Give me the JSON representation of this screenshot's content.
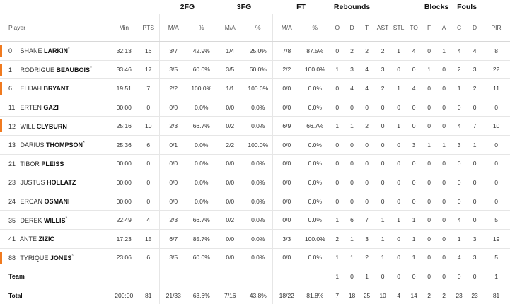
{
  "groups": {
    "fg2": "2FG",
    "fg3": "3FG",
    "ft": "FT",
    "rebounds": "Rebounds",
    "blocks": "Blocks",
    "fouls": "Fouls"
  },
  "columns": [
    "Player",
    "Min",
    "PTS",
    "M/A",
    "%",
    "M/A",
    "%",
    "M/A",
    "%",
    "O",
    "D",
    "T",
    "AST",
    "STL",
    "TO",
    "F",
    "A",
    "C",
    "D",
    "PIR"
  ],
  "players": [
    {
      "num": "0",
      "first": "SHANE",
      "last": "LARKIN",
      "star": "*",
      "starter": true,
      "stats": [
        "32:13",
        "16",
        "3/7",
        "42.9%",
        "1/4",
        "25.0%",
        "7/8",
        "87.5%",
        "0",
        "2",
        "2",
        "2",
        "1",
        "4",
        "0",
        "1",
        "4",
        "4",
        "8"
      ]
    },
    {
      "num": "1",
      "first": "RODRIGUE",
      "last": "BEAUBOIS",
      "star": "*",
      "starter": true,
      "stats": [
        "33:46",
        "17",
        "3/5",
        "60.0%",
        "3/5",
        "60.0%",
        "2/2",
        "100.0%",
        "1",
        "3",
        "4",
        "3",
        "0",
        "0",
        "1",
        "0",
        "2",
        "3",
        "22"
      ]
    },
    {
      "num": "6",
      "first": "ELIJAH",
      "last": "BRYANT",
      "star": "",
      "starter": true,
      "stats": [
        "19:51",
        "7",
        "2/2",
        "100.0%",
        "1/1",
        "100.0%",
        "0/0",
        "0.0%",
        "0",
        "4",
        "4",
        "2",
        "1",
        "4",
        "0",
        "0",
        "1",
        "2",
        "11"
      ]
    },
    {
      "num": "11",
      "first": "ERTEN",
      "last": "GAZI",
      "star": "",
      "starter": false,
      "stats": [
        "00:00",
        "0",
        "0/0",
        "0.0%",
        "0/0",
        "0.0%",
        "0/0",
        "0.0%",
        "0",
        "0",
        "0",
        "0",
        "0",
        "0",
        "0",
        "0",
        "0",
        "0",
        "0"
      ]
    },
    {
      "num": "12",
      "first": "WILL",
      "last": "CLYBURN",
      "star": "",
      "starter": true,
      "stats": [
        "25:16",
        "10",
        "2/3",
        "66.7%",
        "0/2",
        "0.0%",
        "6/9",
        "66.7%",
        "1",
        "1",
        "2",
        "0",
        "1",
        "0",
        "0",
        "0",
        "4",
        "7",
        "10"
      ]
    },
    {
      "num": "13",
      "first": "DARIUS",
      "last": "THOMPSON",
      "star": "*",
      "starter": false,
      "stats": [
        "25:36",
        "6",
        "0/1",
        "0.0%",
        "2/2",
        "100.0%",
        "0/0",
        "0.0%",
        "0",
        "0",
        "0",
        "0",
        "0",
        "3",
        "1",
        "1",
        "3",
        "1",
        "0"
      ]
    },
    {
      "num": "21",
      "first": "TIBOR",
      "last": "PLEISS",
      "star": "",
      "starter": false,
      "stats": [
        "00:00",
        "0",
        "0/0",
        "0.0%",
        "0/0",
        "0.0%",
        "0/0",
        "0.0%",
        "0",
        "0",
        "0",
        "0",
        "0",
        "0",
        "0",
        "0",
        "0",
        "0",
        "0"
      ]
    },
    {
      "num": "23",
      "first": "JUSTUS",
      "last": "HOLLATZ",
      "star": "",
      "starter": false,
      "stats": [
        "00:00",
        "0",
        "0/0",
        "0.0%",
        "0/0",
        "0.0%",
        "0/0",
        "0.0%",
        "0",
        "0",
        "0",
        "0",
        "0",
        "0",
        "0",
        "0",
        "0",
        "0",
        "0"
      ]
    },
    {
      "num": "24",
      "first": "ERCAN",
      "last": "OSMANI",
      "star": "",
      "starter": false,
      "stats": [
        "00:00",
        "0",
        "0/0",
        "0.0%",
        "0/0",
        "0.0%",
        "0/0",
        "0.0%",
        "0",
        "0",
        "0",
        "0",
        "0",
        "0",
        "0",
        "0",
        "0",
        "0",
        "0"
      ]
    },
    {
      "num": "35",
      "first": "DEREK",
      "last": "WILLIS",
      "star": "*",
      "starter": false,
      "stats": [
        "22:49",
        "4",
        "2/3",
        "66.7%",
        "0/2",
        "0.0%",
        "0/0",
        "0.0%",
        "1",
        "6",
        "7",
        "1",
        "1",
        "1",
        "0",
        "0",
        "4",
        "0",
        "5"
      ]
    },
    {
      "num": "41",
      "first": "ANTE",
      "last": "ZIZIC",
      "star": "",
      "starter": false,
      "stats": [
        "17:23",
        "15",
        "6/7",
        "85.7%",
        "0/0",
        "0.0%",
        "3/3",
        "100.0%",
        "2",
        "1",
        "3",
        "1",
        "0",
        "1",
        "0",
        "0",
        "1",
        "3",
        "19"
      ]
    },
    {
      "num": "88",
      "first": "TYRIQUE",
      "last": "JONES",
      "star": "*",
      "starter": true,
      "stats": [
        "23:06",
        "6",
        "3/5",
        "60.0%",
        "0/0",
        "0.0%",
        "0/0",
        "0.0%",
        "1",
        "1",
        "2",
        "1",
        "0",
        "1",
        "0",
        "0",
        "4",
        "3",
        "5"
      ]
    }
  ],
  "team": {
    "label": "Team",
    "stats": [
      "",
      "",
      "",
      "",
      "",
      "",
      "",
      "",
      "1",
      "0",
      "1",
      "0",
      "0",
      "0",
      "0",
      "0",
      "0",
      "0",
      "1"
    ]
  },
  "total": {
    "label": "Total",
    "stats": [
      "200:00",
      "81",
      "21/33",
      "63.6%",
      "7/16",
      "43.8%",
      "18/22",
      "81.8%",
      "7",
      "18",
      "25",
      "10",
      "4",
      "14",
      "2",
      "2",
      "23",
      "23",
      "81"
    ]
  }
}
